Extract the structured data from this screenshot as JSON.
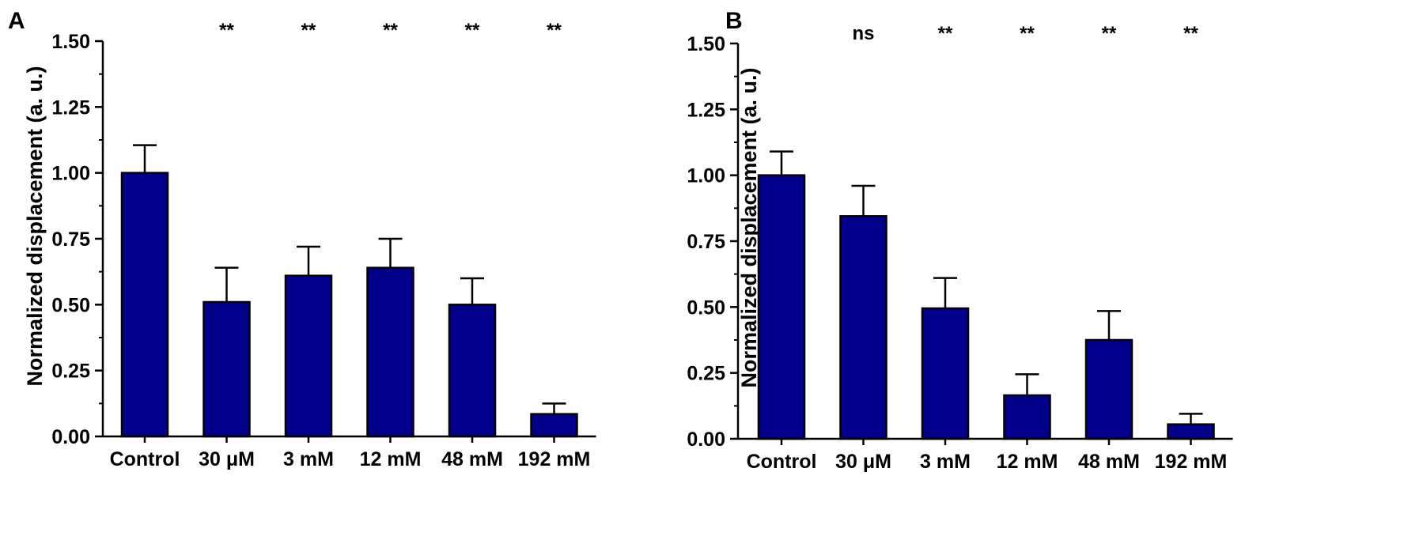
{
  "chart_data": [
    {
      "panel": "A",
      "type": "bar",
      "ylabel": "Normalized displacement (a. u.)",
      "xlabel": "",
      "ylim": [
        0,
        1.5
      ],
      "y_ticks": [
        "0.00",
        "0.25",
        "0.50",
        "0.75",
        "1.00",
        "1.25",
        "1.50"
      ],
      "categories": [
        "Control",
        "30 μM",
        "3 mM",
        "12 mM",
        "48 mM",
        "192 mM"
      ],
      "values": [
        1.0,
        0.51,
        0.61,
        0.64,
        0.5,
        0.085
      ],
      "errors": [
        0.105,
        0.13,
        0.11,
        0.11,
        0.1,
        0.04
      ],
      "significance": [
        "",
        "**",
        "**",
        "**",
        "**",
        "**"
      ],
      "bar_color": "#00008b"
    },
    {
      "panel": "B",
      "type": "bar",
      "ylabel": "Normalized displacement (a. u.)",
      "xlabel": "",
      "ylim": [
        0,
        1.5
      ],
      "y_ticks": [
        "0.00",
        "0.25",
        "0.50",
        "0.75",
        "1.00",
        "1.25",
        "1.50"
      ],
      "categories": [
        "Control",
        "30 μM",
        "3 mM",
        "12 mM",
        "48 mM",
        "192 mM"
      ],
      "values": [
        1.0,
        0.845,
        0.495,
        0.165,
        0.375,
        0.055
      ],
      "errors": [
        0.09,
        0.115,
        0.115,
        0.08,
        0.11,
        0.04
      ],
      "significance": [
        "",
        "ns",
        "**",
        "**",
        "**",
        "**"
      ],
      "bar_color": "#00008b"
    }
  ]
}
